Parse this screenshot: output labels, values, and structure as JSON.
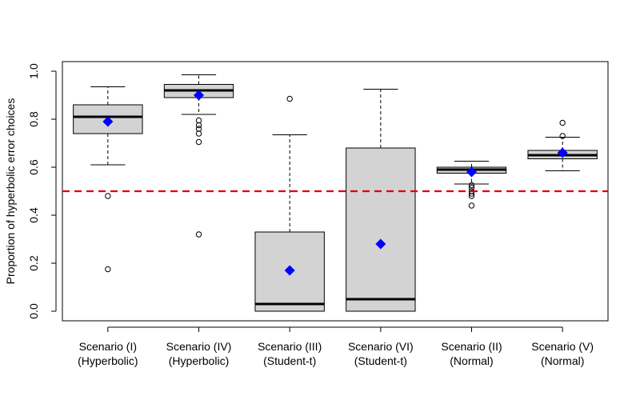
{
  "chart_data": {
    "type": "boxplot",
    "title": "",
    "xlabel": "",
    "ylabel": "Proportion of hyperbolic error choices",
    "ylim": [
      -0.04,
      1.04
    ],
    "yticks": [
      0.0,
      0.2,
      0.4,
      0.6,
      0.8,
      1.0
    ],
    "ytick_labels": [
      "0.0",
      "0.2",
      "0.4",
      "0.6",
      "0.8",
      "1.0"
    ],
    "reference_line": {
      "y": 0.5,
      "color": "#e00000",
      "style": "dashed"
    },
    "mean_marker_color": "#0000ff",
    "box_fill": "#d3d3d3",
    "categories": [
      {
        "line1": "Scenario (I)",
        "line2": "(Hyperbolic)"
      },
      {
        "line1": "Scenario (IV)",
        "line2": "(Hyperbolic)"
      },
      {
        "line1": "Scenario (III)",
        "line2": "(Student-t)"
      },
      {
        "line1": "Scenario (VI)",
        "line2": "(Student-t)"
      },
      {
        "line1": "Scenario (II)",
        "line2": "(Normal)"
      },
      {
        "line1": "Scenario (V)",
        "line2": "(Normal)"
      }
    ],
    "boxes": [
      {
        "whisker_low": 0.61,
        "q1": 0.74,
        "median": 0.81,
        "q3": 0.86,
        "whisker_high": 0.935,
        "mean": 0.79,
        "outliers": [
          0.48,
          0.175
        ]
      },
      {
        "whisker_low": 0.82,
        "q1": 0.89,
        "median": 0.92,
        "q3": 0.945,
        "whisker_high": 0.985,
        "mean": 0.9,
        "outliers": [
          0.795,
          0.775,
          0.76,
          0.74,
          0.705,
          0.32
        ]
      },
      {
        "whisker_low": 0.0,
        "q1": 0.0,
        "median": 0.03,
        "q3": 0.33,
        "whisker_high": 0.735,
        "mean": 0.17,
        "outliers": [
          0.885
        ]
      },
      {
        "whisker_low": 0.0,
        "q1": 0.0,
        "median": 0.05,
        "q3": 0.68,
        "whisker_high": 0.925,
        "mean": 0.28,
        "outliers": []
      },
      {
        "whisker_low": 0.53,
        "q1": 0.575,
        "median": 0.59,
        "q3": 0.6,
        "whisker_high": 0.625,
        "mean": 0.58,
        "outliers": [
          0.525,
          0.515,
          0.5,
          0.49,
          0.48,
          0.44
        ]
      },
      {
        "whisker_low": 0.585,
        "q1": 0.635,
        "median": 0.65,
        "q3": 0.67,
        "whisker_high": 0.725,
        "mean": 0.66,
        "outliers": [
          0.73,
          0.785
        ]
      }
    ]
  }
}
